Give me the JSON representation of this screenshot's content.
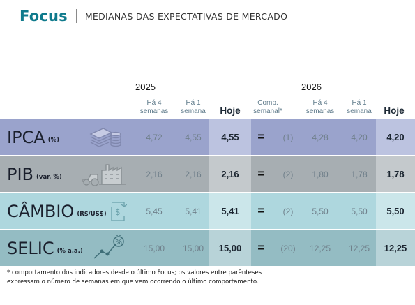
{
  "header": {
    "brand": "Focus",
    "subtitle": "MEDIANAS DAS EXPECTATIVAS DE MERCADO"
  },
  "years": {
    "y2025": "2025",
    "y2026": "2026"
  },
  "columns": {
    "ha4_l1": "Há 4",
    "ha4_l2": "semanas",
    "ha1_l1": "Há 1",
    "ha1_l2": "semana",
    "hoje": "Hoje",
    "comp_l1": "Comp.",
    "comp_l2": "semanal*"
  },
  "rows": [
    {
      "name": "IPCA",
      "unit": "(%)",
      "icon": "coins-bills-icon",
      "ha4_2025": "4,72",
      "ha1_2025": "4,55",
      "hoje_2025": "4,55",
      "comp": "=",
      "weeks": "(1)",
      "ha4_2026": "4,28",
      "ha1_2026": "4,20",
      "hoje_2026": "4,20"
    },
    {
      "name": "PIB",
      "unit": "(var. %)",
      "icon": "tractor-factory-icon",
      "ha4_2025": "2,16",
      "ha1_2025": "2,16",
      "hoje_2025": "2,16",
      "comp": "=",
      "weeks": "(2)",
      "ha4_2026": "1,80",
      "ha1_2026": "1,78",
      "hoje_2026": "1,78"
    },
    {
      "name": "CÂMBIO",
      "unit": "(R$/US$)",
      "icon": "dollar-exchange-icon",
      "ha4_2025": "5,45",
      "ha1_2025": "5,41",
      "hoje_2025": "5,41",
      "comp": "=",
      "weeks": "(2)",
      "ha4_2026": "5,50",
      "ha1_2026": "5,50",
      "hoje_2026": "5,50"
    },
    {
      "name": "SELIC",
      "unit": "(% a.a.)",
      "icon": "percent-trend-icon",
      "ha4_2025": "15,00",
      "ha1_2025": "15,00",
      "hoje_2025": "15,00",
      "comp": "=",
      "weeks": "(20)",
      "ha4_2026": "12,25",
      "ha1_2026": "12,25",
      "hoje_2026": "12,25"
    }
  ],
  "colors": {
    "brand": "#0f7a8c",
    "row_ipca": "#9aa3cc",
    "row_ipca_hi": "#bcc3e0",
    "row_pib": "#a7aeb2",
    "row_pib_hi": "#c4c9cc",
    "row_cambio": "#aed7de",
    "row_cambio_hi": "#cbe6ea",
    "row_selic": "#94bcc3",
    "row_selic_hi": "#b8d3d8"
  },
  "footnote": "* comportamento dos indicadores desde o último Focus; os valores entre parênteses expressam o número de semanas em que vem ocorrendo o último comportamento."
}
